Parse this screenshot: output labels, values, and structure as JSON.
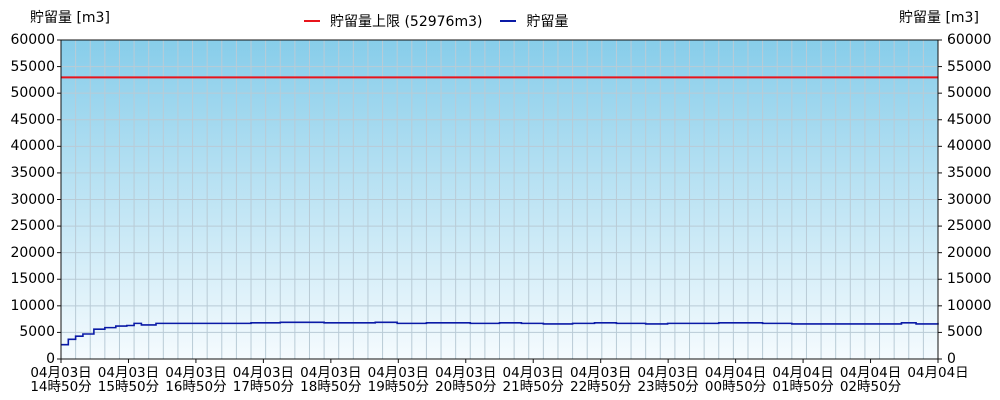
{
  "chart_data": {
    "type": "line",
    "ylabel_left": "貯留量 [m3]",
    "ylabel_right": "貯留量 [m3]",
    "ylim": [
      0,
      60000
    ],
    "yticks": [
      "60000",
      "55000",
      "50000",
      "45000",
      "40000",
      "35000",
      "30000",
      "25000",
      "20000",
      "15000",
      "10000",
      "5000",
      "0"
    ],
    "xticks": [
      [
        "04月03日",
        "14時50分"
      ],
      [
        "04月03日",
        "15時50分"
      ],
      [
        "04月03日",
        "16時50分"
      ],
      [
        "04月03日",
        "17時50分"
      ],
      [
        "04月03日",
        "18時50分"
      ],
      [
        "04月03日",
        "19時50分"
      ],
      [
        "04月03日",
        "20時50分"
      ],
      [
        "04月03日",
        "21時50分"
      ],
      [
        "04月03日",
        "22時50分"
      ],
      [
        "04月03日",
        "23時50分"
      ],
      [
        "04月04日",
        "00時50分"
      ],
      [
        "04月04日",
        "01時50分"
      ],
      [
        "04月04日",
        "02時50分"
      ],
      [
        "04月04日",
        ""
      ]
    ],
    "x_hours": [
      0,
      12.0
    ],
    "grid": true,
    "legend_position": "top-center",
    "limit": {
      "label": "貯留量上限 (52976m3)",
      "value": 52976,
      "color": "#e8141b"
    },
    "series": [
      {
        "name": "貯留量",
        "color": "#0a1aa6",
        "x": [
          0,
          0.1,
          0.2,
          0.3,
          0.45,
          0.6,
          0.75,
          0.9,
          1.0,
          1.1,
          1.3,
          1.5,
          1.7,
          2.0,
          2.3,
          2.6,
          3.0,
          3.3,
          3.6,
          4.0,
          4.3,
          4.6,
          5.0,
          5.3,
          5.6,
          6.0,
          6.3,
          6.6,
          7.0,
          7.3,
          7.6,
          8.0,
          8.3,
          8.6,
          9.0,
          9.3,
          9.6,
          10.0,
          10.3,
          10.6,
          11.0,
          11.3,
          11.5,
          11.7,
          12.0
        ],
        "values": [
          2700,
          3700,
          4300,
          4700,
          5600,
          5900,
          6200,
          6300,
          6700,
          6400,
          6700,
          6700,
          6700,
          6700,
          6700,
          6800,
          6900,
          6900,
          6800,
          6800,
          6900,
          6700,
          6800,
          6800,
          6700,
          6800,
          6700,
          6600,
          6700,
          6800,
          6700,
          6600,
          6700,
          6700,
          6800,
          6800,
          6700,
          6600,
          6600,
          6600,
          6600,
          6600,
          6800,
          6600,
          6800
        ]
      }
    ]
  }
}
